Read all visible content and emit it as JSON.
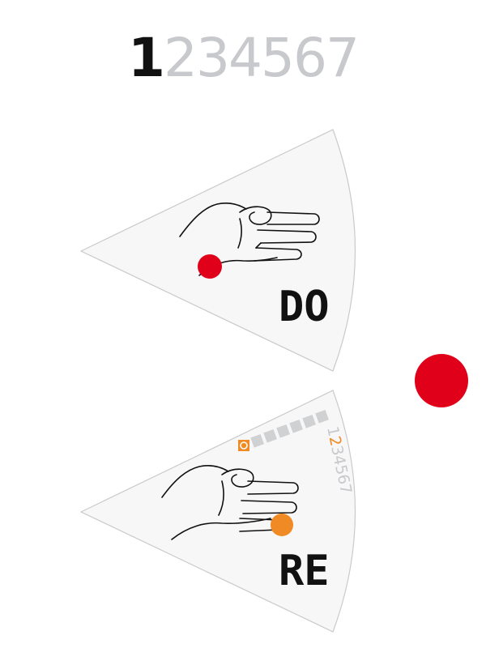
{
  "sequence": {
    "digits": [
      "1",
      "2",
      "3",
      "4",
      "5",
      "6",
      "7"
    ],
    "active_index": 0
  },
  "cards": [
    {
      "note": "DO",
      "dot_color": "#e1001a"
    },
    {
      "note": "RE",
      "dot_color": "#f08a24",
      "mini_sequence": [
        "1",
        "2",
        "3",
        "4",
        "5",
        "6",
        "7"
      ],
      "mini_active_index": 1
    }
  ],
  "colors": {
    "active_digit": "#111111",
    "inactive_digit": "#c8c9cc",
    "card_fill": "#f7f7f8",
    "card_stroke": "#c9cacc",
    "red_dot": "#e1001a",
    "orange_accent": "#f08a24"
  },
  "icons": [
    "hand-illustration-icon",
    "solfege-symbols-icon"
  ]
}
